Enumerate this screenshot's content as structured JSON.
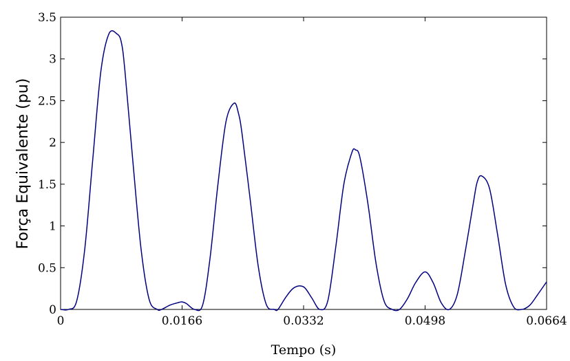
{
  "chart_data": {
    "type": "line",
    "title": "",
    "xlabel": "Tempo (s)",
    "ylabel": "Força Equivalente (pu)",
    "xlim": [
      0,
      0.0664
    ],
    "ylim": [
      0,
      3.5
    ],
    "xticks": [
      0,
      0.0166,
      0.0332,
      0.0498,
      0.0664
    ],
    "xtick_labels": [
      "0",
      "0.0166",
      "0.0332",
      "0.0498",
      "0.0664"
    ],
    "yticks": [
      0,
      0.5,
      1,
      1.5,
      2,
      2.5,
      3,
      3.5
    ],
    "ytick_labels": [
      "0",
      "0.5",
      "1",
      "1.5",
      "2",
      "2.5",
      "3",
      "3.5"
    ],
    "grid": false,
    "line_color": "#000080",
    "series": [
      {
        "x": [
          0,
          0.0011,
          0.0022,
          0.0033,
          0.0044,
          0.0055,
          0.0066,
          0.0077,
          0.0083,
          0.0088,
          0.0099,
          0.011,
          0.0121,
          0.0132,
          0.0138,
          0.0149,
          0.016,
          0.0166,
          0.0172,
          0.0183,
          0.0194,
          0.0204,
          0.0215,
          0.0226,
          0.0237,
          0.0243,
          0.0248,
          0.0259,
          0.027,
          0.0281,
          0.0292,
          0.0297,
          0.0308,
          0.0319,
          0.0332,
          0.0343,
          0.0354,
          0.0365,
          0.0376,
          0.0387,
          0.0398,
          0.0403,
          0.0409,
          0.042,
          0.0431,
          0.0442,
          0.0453,
          0.0463,
          0.0474,
          0.0485,
          0.0498,
          0.0509,
          0.052,
          0.0531,
          0.0542,
          0.0553,
          0.0564,
          0.0569,
          0.0575,
          0.0586,
          0.0597,
          0.0608,
          0.0619,
          0.063,
          0.0641,
          0.0652,
          0.0664
        ],
        "y": [
          0,
          0,
          0.1,
          0.72,
          1.8,
          2.85,
          3.3,
          3.3,
          3.2,
          2.85,
          1.75,
          0.72,
          0.12,
          0,
          0,
          0.05,
          0.08,
          0.09,
          0.07,
          0,
          0.05,
          0.6,
          1.5,
          2.25,
          2.47,
          2.35,
          2.1,
          1.32,
          0.52,
          0.06,
          0,
          0,
          0.15,
          0.26,
          0.27,
          0.14,
          0,
          0.1,
          0.75,
          1.5,
          1.88,
          1.91,
          1.82,
          1.26,
          0.55,
          0.1,
          0,
          0,
          0.13,
          0.32,
          0.45,
          0.32,
          0.08,
          0,
          0.18,
          0.7,
          1.28,
          1.52,
          1.6,
          1.45,
          0.9,
          0.3,
          0.03,
          0,
          0.05,
          0.18,
          0.33
        ]
      }
    ]
  }
}
